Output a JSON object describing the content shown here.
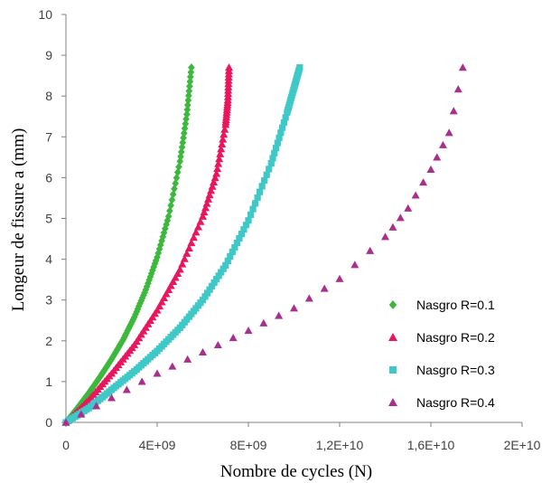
{
  "chart_data": {
    "type": "scatter",
    "title": "",
    "xlabel": "Nombre de cycles  (N)",
    "ylabel": "Longeur de fissure a (mm)",
    "xlim": [
      0,
      20000000000
    ],
    "ylim": [
      0,
      10
    ],
    "x_ticks": [
      0,
      4000000000,
      8000000000,
      12000000000,
      16000000000,
      20000000000
    ],
    "x_tick_labels": [
      "0",
      "4E+09",
      "8E+09",
      "1,2E+10",
      "1,6E+10",
      "2E+10"
    ],
    "y_ticks": [
      0,
      1,
      2,
      3,
      4,
      5,
      6,
      7,
      8,
      9,
      10
    ],
    "y_tick_labels": [
      "0",
      "1",
      "2",
      "3",
      "4",
      "5",
      "6",
      "7",
      "8",
      "9",
      "10"
    ],
    "grid": false,
    "legend_position": "lower-right",
    "series": [
      {
        "name": "Nasgro R=0.1",
        "marker": "diamond",
        "color": "#3cb83c",
        "points": [
          [
            0,
            0
          ],
          [
            500000000,
            0.35
          ],
          [
            1000000000,
            0.72
          ],
          [
            1500000000,
            1.12
          ],
          [
            2000000000,
            1.55
          ],
          [
            2500000000,
            2.02
          ],
          [
            3000000000,
            2.58
          ],
          [
            3500000000,
            3.25
          ],
          [
            4000000000,
            4.05
          ],
          [
            4500000000,
            5.05
          ],
          [
            5000000000,
            6.4
          ],
          [
            5300000000,
            7.55
          ],
          [
            5500000000,
            8.7
          ]
        ]
      },
      {
        "name": "Nasgro R=0.2",
        "marker": "triangle",
        "color": "#e8175d",
        "points": [
          [
            0,
            0
          ],
          [
            1000000000,
            0.55
          ],
          [
            2000000000,
            1.2
          ],
          [
            3000000000,
            1.9
          ],
          [
            4000000000,
            2.75
          ],
          [
            5000000000,
            3.75
          ],
          [
            6000000000,
            5.05
          ],
          [
            6600000000,
            6.1
          ],
          [
            7000000000,
            7.3
          ],
          [
            7100000000,
            7.9
          ],
          [
            7150000000,
            8.7
          ]
        ]
      },
      {
        "name": "Nasgro R=0.3",
        "marker": "square",
        "color": "#3ec8c8",
        "points": [
          [
            0,
            0
          ],
          [
            1000000000,
            0.35
          ],
          [
            2000000000,
            0.8
          ],
          [
            3000000000,
            1.25
          ],
          [
            4000000000,
            1.75
          ],
          [
            5000000000,
            2.32
          ],
          [
            6000000000,
            3.0
          ],
          [
            7000000000,
            3.85
          ],
          [
            8000000000,
            4.95
          ],
          [
            9000000000,
            6.35
          ],
          [
            9700000000,
            7.6
          ],
          [
            10000000000,
            8.2
          ],
          [
            10250000000,
            8.7
          ]
        ]
      },
      {
        "name": "Nasgro R=0.4",
        "marker": "triangle",
        "color": "#a8308c",
        "points": [
          [
            0,
            0
          ],
          [
            2000000000,
            0.6
          ],
          [
            4000000000,
            1.2
          ],
          [
            6000000000,
            1.72
          ],
          [
            8000000000,
            2.25
          ],
          [
            10000000000,
            2.8
          ],
          [
            12000000000,
            3.52
          ],
          [
            14000000000,
            4.55
          ],
          [
            15000000000,
            5.25
          ],
          [
            16000000000,
            6.2
          ],
          [
            16800000000,
            7.1
          ],
          [
            17400000000,
            8.7
          ]
        ]
      }
    ]
  }
}
